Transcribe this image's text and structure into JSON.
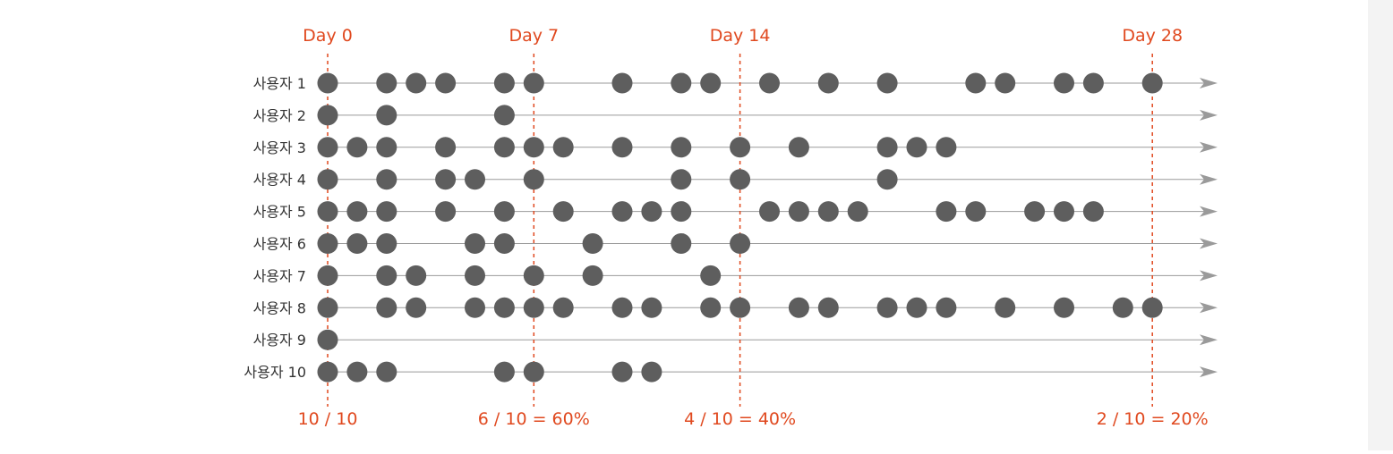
{
  "colors": {
    "marker": "#e0491f",
    "dot": "#5e5e5e",
    "line": "#9a9a9a",
    "label": "#333333"
  },
  "chart_data": {
    "type": "scatter",
    "title": "",
    "day_markers": [
      {
        "day": 0,
        "label": "Day 0",
        "retention": "10 / 10"
      },
      {
        "day": 7,
        "label": "Day 7",
        "retention": "6 / 10 = 60%"
      },
      {
        "day": 14,
        "label": "Day 14",
        "retention": "4 / 10 = 40%"
      },
      {
        "day": 28,
        "label": "Day 28",
        "retention": "2 / 10 = 20%"
      }
    ],
    "xlim": [
      0,
      30.5
    ],
    "series": [
      {
        "name": "사용자 1",
        "days": [
          0,
          2,
          3,
          4,
          6,
          7,
          10,
          12,
          13,
          15,
          17,
          19,
          22,
          23,
          25,
          26,
          28
        ]
      },
      {
        "name": "사용자 2",
        "days": [
          0,
          2,
          6
        ]
      },
      {
        "name": "사용자 3",
        "days": [
          0,
          1,
          2,
          4,
          6,
          7,
          8,
          10,
          12,
          14,
          16,
          19,
          20,
          21
        ]
      },
      {
        "name": "사용자 4",
        "days": [
          0,
          2,
          4,
          5,
          7,
          12,
          14,
          19
        ]
      },
      {
        "name": "사용자 5",
        "days": [
          0,
          1,
          2,
          4,
          6,
          8,
          10,
          11,
          12,
          15,
          16,
          17,
          18,
          21,
          22,
          24,
          25,
          26
        ]
      },
      {
        "name": "사용자 6",
        "days": [
          0,
          1,
          2,
          5,
          6,
          9,
          12,
          14
        ]
      },
      {
        "name": "사용자 7",
        "days": [
          0,
          2,
          3,
          5,
          7,
          9,
          13
        ]
      },
      {
        "name": "사용자 8",
        "days": [
          0,
          2,
          3,
          5,
          6,
          7,
          8,
          10,
          11,
          13,
          14,
          16,
          17,
          19,
          20,
          21,
          23,
          25,
          27,
          28
        ]
      },
      {
        "name": "사용자 9",
        "days": [
          0
        ]
      },
      {
        "name": "사용자 10",
        "days": [
          0,
          1,
          2,
          6,
          7,
          10,
          11
        ]
      }
    ]
  }
}
